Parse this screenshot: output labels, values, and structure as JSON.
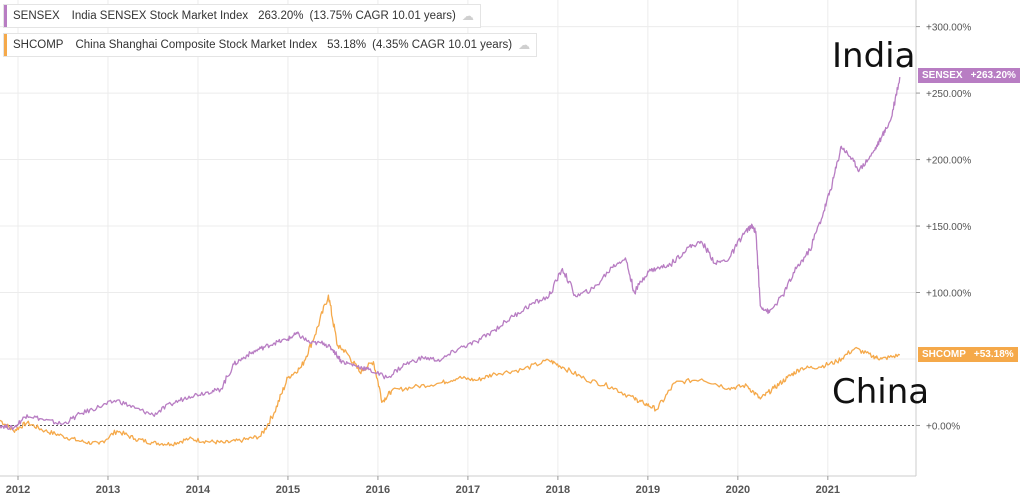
{
  "legend": [
    {
      "ticker": "SENSEX",
      "name": "India SENSEX Stock Market Index",
      "change": "263.20%",
      "cagr": "(13.75% CAGR 10.01 years)",
      "color": "#b87dc3"
    },
    {
      "ticker": "SHCOMP",
      "name": "China Shanghai Composite Stock Market Index",
      "change": "53.18%",
      "cagr": "(4.35% CAGR 10.01 years)",
      "color": "#f5a94a"
    }
  ],
  "annotations": {
    "india": "India",
    "china": "China"
  },
  "chart_data": {
    "type": "line",
    "title": "",
    "xlabel": "",
    "ylabel": "",
    "x_ticks": [
      "2012",
      "2013",
      "2014",
      "2015",
      "2016",
      "2017",
      "2018",
      "2019",
      "2020",
      "2021"
    ],
    "y_ticks": [
      "+300.00%",
      "+250.00%",
      "+200.00%",
      "+150.00%",
      "+100.00%",
      "+0.00%"
    ],
    "ylim": [
      -38,
      320
    ],
    "xlim": [
      2011.8,
      2021.98
    ],
    "grid": true,
    "series": [
      {
        "name": "SENSEX",
        "end_label": "+263.20%",
        "color": "#b87dc3",
        "x": [
          2011.8,
          2011.95,
          2012.1,
          2012.3,
          2012.5,
          2012.7,
          2012.9,
          2013.1,
          2013.3,
          2013.5,
          2013.7,
          2013.9,
          2014.1,
          2014.25,
          2014.4,
          2014.55,
          2014.7,
          2014.85,
          2015.0,
          2015.1,
          2015.25,
          2015.4,
          2015.5,
          2015.6,
          2015.75,
          2015.9,
          2016.1,
          2016.3,
          2016.5,
          2016.7,
          2016.9,
          2017.1,
          2017.3,
          2017.5,
          2017.7,
          2017.9,
          2018.05,
          2018.2,
          2018.4,
          2018.6,
          2018.75,
          2018.85,
          2019.0,
          2019.1,
          2019.25,
          2019.45,
          2019.6,
          2019.75,
          2019.9,
          2020.05,
          2020.15,
          2020.2,
          2020.25,
          2020.35,
          2020.5,
          2020.65,
          2020.8,
          2020.95,
          2021.05,
          2021.15,
          2021.25,
          2021.35,
          2021.5,
          2021.6,
          2021.7,
          2021.8
        ],
        "y": [
          0,
          -2,
          8,
          4,
          1,
          9,
          14,
          19,
          13,
          8,
          16,
          22,
          25,
          27,
          46,
          53,
          58,
          62,
          65,
          69,
          62,
          62,
          57,
          48,
          45,
          42,
          36,
          46,
          51,
          49,
          58,
          63,
          72,
          82,
          91,
          97,
          118,
          97,
          103,
          119,
          126,
          100,
          116,
          118,
          121,
          134,
          138,
          122,
          125,
          143,
          150,
          146,
          90,
          85,
          98,
          118,
          132,
          160,
          182,
          210,
          202,
          192,
          205,
          217,
          230,
          262
        ],
        "end_y": 263.2
      },
      {
        "name": "SHCOMP",
        "end_label": "+53.18%",
        "color": "#f5a94a",
        "x": [
          2011.8,
          2011.95,
          2012.1,
          2012.3,
          2012.5,
          2012.7,
          2012.9,
          2013.1,
          2013.3,
          2013.5,
          2013.7,
          2013.9,
          2014.1,
          2014.3,
          2014.5,
          2014.7,
          2014.85,
          2015.0,
          2015.15,
          2015.3,
          2015.45,
          2015.55,
          2015.65,
          2015.8,
          2015.95,
          2016.05,
          2016.15,
          2016.4,
          2016.7,
          2016.9,
          2017.1,
          2017.3,
          2017.6,
          2017.9,
          2018.05,
          2018.3,
          2018.6,
          2018.85,
          2018.95,
          2019.1,
          2019.3,
          2019.6,
          2019.9,
          2020.1,
          2020.25,
          2020.4,
          2020.55,
          2020.7,
          2020.9,
          2021.1,
          2021.3,
          2021.5,
          2021.6,
          2021.8
        ],
        "y": [
          4,
          -4,
          2,
          -4,
          -8,
          -12,
          -14,
          -4,
          -10,
          -13,
          -14,
          -10,
          -12,
          -13,
          -11,
          -8,
          10,
          36,
          44,
          68,
          98,
          60,
          55,
          40,
          48,
          18,
          26,
          29,
          32,
          36,
          34,
          39,
          42,
          49,
          44,
          35,
          29,
          20,
          17,
          12,
          32,
          35,
          28,
          30,
          20,
          28,
          36,
          43,
          44,
          48,
          58,
          52,
          50,
          53
        ],
        "end_y": 53.18
      }
    ]
  }
}
